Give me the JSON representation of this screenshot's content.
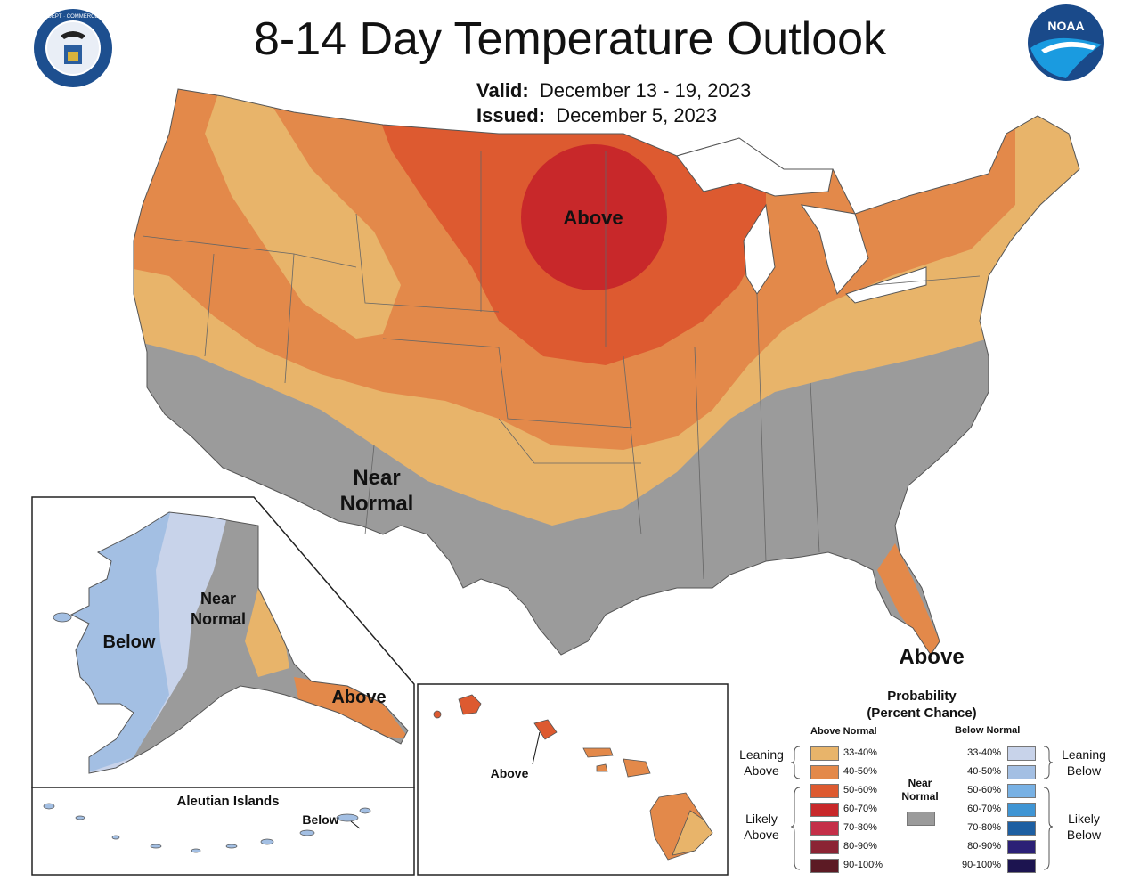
{
  "title": "8-14 Day Temperature Outlook",
  "valid_label": "Valid:",
  "valid_dates": "December 13 - 19, 2023",
  "issued_label": "Issued:",
  "issued_date": "December 5, 2023",
  "seal_text": "DEPARTMENT OF COMMERCE · UNITED STATES OF AMERICA",
  "noaa_logo": "NOAA",
  "map_labels": {
    "conus_above": "Above",
    "conus_near_1": "Near",
    "conus_near_2": "Normal",
    "florida_above": "Above",
    "alaska_below": "Below",
    "alaska_near_1": "Near",
    "alaska_near_2": "Normal",
    "alaska_above": "Above",
    "aleutian_title": "Aleutian Islands",
    "aleutian_below": "Below",
    "hawaii_above": "Above"
  },
  "legend": {
    "title_1": "Probability",
    "title_2": "(Percent Chance)",
    "above_head": "Above Normal",
    "below_head": "Below Normal",
    "near_1": "Near",
    "near_2": "Normal",
    "leaning_above_1": "Leaning",
    "leaning_above_2": "Above",
    "likely_above_1": "Likely",
    "likely_above_2": "Above",
    "leaning_below_1": "Leaning",
    "leaning_below_2": "Below",
    "likely_below_1": "Likely",
    "likely_below_2": "Below",
    "above": [
      {
        "label": "33-40%",
        "color": "#e8b46a"
      },
      {
        "label": "40-50%",
        "color": "#e3894a"
      },
      {
        "label": "50-60%",
        "color": "#dd5a30"
      },
      {
        "label": "60-70%",
        "color": "#c8282a"
      },
      {
        "label": "70-80%",
        "color": "#c42f48"
      },
      {
        "label": "80-90%",
        "color": "#8b2434"
      },
      {
        "label": "90-100%",
        "color": "#5c1a24"
      }
    ],
    "below": [
      {
        "label": "33-40%",
        "color": "#c8d3ea"
      },
      {
        "label": "40-50%",
        "color": "#a3bfe3"
      },
      {
        "label": "50-60%",
        "color": "#78b1e4"
      },
      {
        "label": "60-70%",
        "color": "#3f95d4"
      },
      {
        "label": "70-80%",
        "color": "#1d5fa2"
      },
      {
        "label": "80-90%",
        "color": "#2b2076"
      },
      {
        "label": "90-100%",
        "color": "#1c1450"
      }
    ],
    "near_color": "#9b9b9b"
  }
}
